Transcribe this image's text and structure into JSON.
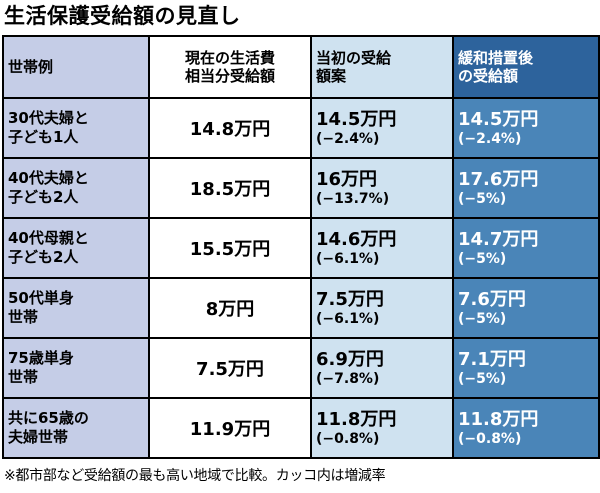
{
  "title": "生活保護受給額の見直し",
  "footnote": "※都市部など受給額の最も高い地域で比較。カッコ内は増減率",
  "colors": {
    "household_col_bg": "#c5cde7",
    "initial_col_bg": "#cfe2f0",
    "relaxed_header_bg": "#2d639c",
    "relaxed_body_bg": "#4a85b8",
    "relaxed_text": "#ffffff",
    "grid_line": "#000000"
  },
  "table": {
    "headers": {
      "household": "世帯例",
      "current": "現在の生活費\n相当分受給額",
      "initial": "当初の受給\n額案",
      "relaxed": "緩和措置後\nの受給額"
    },
    "rows": [
      {
        "household": "30代夫婦と\n子ども1人",
        "current": "14.8万円",
        "initial_value": "14.5万円",
        "initial_pct": "(−2.4%)",
        "relaxed_value": "14.5万円",
        "relaxed_pct": "(−2.4%)"
      },
      {
        "household": "40代夫婦と\n子ども2人",
        "current": "18.5万円",
        "initial_value": "16万円",
        "initial_pct": "(−13.7%)",
        "relaxed_value": "17.6万円",
        "relaxed_pct": "(−5%)"
      },
      {
        "household": "40代母親と\n子ども2人",
        "current": "15.5万円",
        "initial_value": "14.6万円",
        "initial_pct": "(−6.1%)",
        "relaxed_value": "14.7万円",
        "relaxed_pct": "(−5%)"
      },
      {
        "household": "50代単身\n世帯",
        "current": "8万円",
        "initial_value": "7.5万円",
        "initial_pct": "(−6.1%)",
        "relaxed_value": "7.6万円",
        "relaxed_pct": "(−5%)"
      },
      {
        "household": "75歳単身\n世帯",
        "current": "7.5万円",
        "initial_value": "6.9万円",
        "initial_pct": "(−7.8%)",
        "relaxed_value": "7.1万円",
        "relaxed_pct": "(−5%)"
      },
      {
        "household": "共に65歳の\n夫婦世帯",
        "current": "11.9万円",
        "initial_value": "11.8万円",
        "initial_pct": "(−0.8%)",
        "relaxed_value": "11.8万円",
        "relaxed_pct": "(−0.8%)"
      }
    ]
  },
  "chart_data": {
    "type": "table",
    "title": "生活保護受給額の見直し",
    "columns": [
      "世帯例",
      "現在の生活費相当分受給額",
      "当初の受給額案",
      "緩和措置後の受給額"
    ],
    "rows": [
      [
        "30代夫婦と子ども1人",
        "14.8万円",
        "14.5万円 (−2.4%)",
        "14.5万円 (−2.4%)"
      ],
      [
        "40代夫婦と子ども2人",
        "18.5万円",
        "16万円 (−13.7%)",
        "17.6万円 (−5%)"
      ],
      [
        "40代母親と子ども2人",
        "15.5万円",
        "14.6万円 (−6.1%)",
        "14.7万円 (−5%)"
      ],
      [
        "50代単身世帯",
        "8万円",
        "7.5万円 (−6.1%)",
        "7.6万円 (−5%)"
      ],
      [
        "75歳単身世帯",
        "7.5万円",
        "6.9万円 (−7.8%)",
        "7.1万円 (−5%)"
      ],
      [
        "共に65歳の夫婦世帯",
        "11.9万円",
        "11.8万円 (−0.8%)",
        "11.8万円 (−0.8%)"
      ]
    ],
    "footnote": "※都市部など受給額の最も高い地域で比較。カッコ内は増減率"
  }
}
